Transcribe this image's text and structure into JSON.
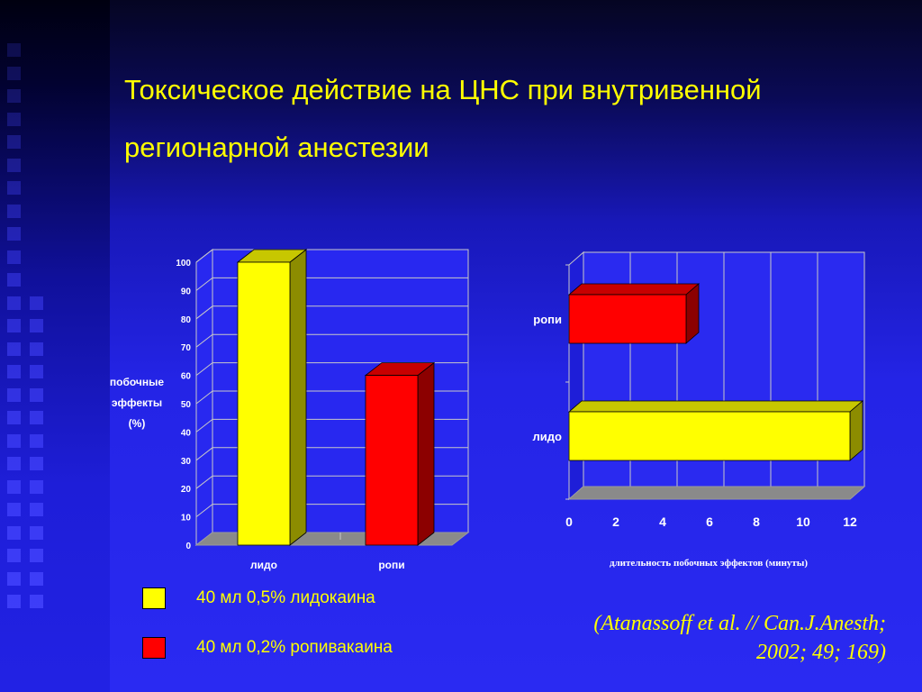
{
  "slide": {
    "title_line1": "Токсическое действие на ЦНС при внутривенной",
    "title_line2": "регионарной анестезии",
    "citation_line1": "(Atanassoff et al. // Can.J.Anesth;",
    "citation_line2": "2002; 49; 169)"
  },
  "legend": [
    {
      "label": "40 мл 0,5% лидокаина",
      "color": "#ffff00"
    },
    {
      "label": "40 мл 0,2% ропивакаина",
      "color": "#ff0000"
    }
  ],
  "chart_data": [
    {
      "type": "bar",
      "orientation": "vertical",
      "three_d": true,
      "categories": [
        "лидо",
        "ропи"
      ],
      "values": [
        100,
        60
      ],
      "colors": [
        "#ffff00",
        "#ff0000"
      ],
      "ylabel_lines": [
        "побочные",
        "эффекты",
        "(%)"
      ],
      "xlabel": "",
      "ylim": [
        0,
        100
      ],
      "yticks": [
        "0",
        "10",
        "20",
        "30",
        "40",
        "50",
        "60",
        "70",
        "80",
        "90",
        "100"
      ],
      "grid": true,
      "legend": "below"
    },
    {
      "type": "bar",
      "orientation": "horizontal",
      "three_d": true,
      "categories": [
        "ропи",
        "лидо"
      ],
      "values": [
        5,
        12
      ],
      "colors": [
        "#ff0000",
        "#ffff00"
      ],
      "xlabel": "длительность побочных эффектов (минуты)",
      "ylabel": "",
      "xlim": [
        0,
        12
      ],
      "xticks": [
        "0",
        "2",
        "4",
        "6",
        "8",
        "10",
        "12"
      ],
      "grid": true
    }
  ]
}
